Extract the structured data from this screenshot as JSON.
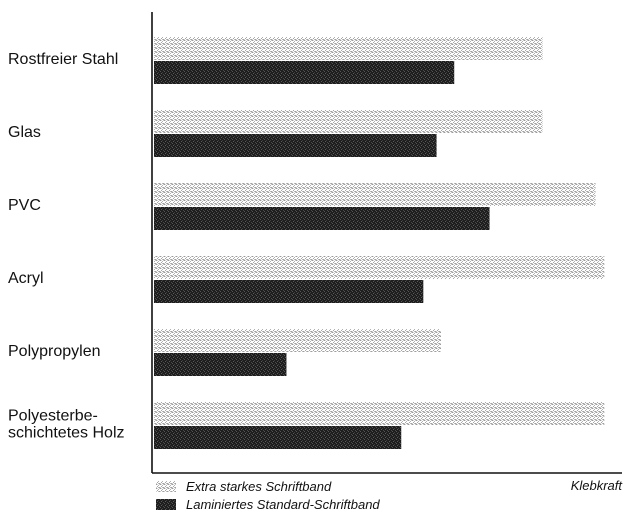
{
  "chart_data": {
    "type": "bar",
    "orientation": "horizontal",
    "categories": [
      [
        "Rostfreier Stahl"
      ],
      [
        "Glas"
      ],
      [
        "PVC"
      ],
      [
        "Acryl"
      ],
      [
        "Polypropylen"
      ],
      [
        "Polyesterbe-",
        "schichtetes Holz"
      ]
    ],
    "series": [
      {
        "name": "Extra starkes Schriftband",
        "values": [
          88,
          88,
          100,
          102,
          65,
          102
        ],
        "color": "#c9c9c9",
        "pattern": "light-stipple"
      },
      {
        "name": "Laminiertes Standard-Schriftband",
        "values": [
          68,
          64,
          76,
          61,
          30,
          56
        ],
        "color": "#2a2a2a",
        "pattern": "dark-stipple"
      }
    ],
    "xlabel": "Klebkraft",
    "ylabel": "",
    "xlim": [
      0,
      106
    ],
    "grid": false,
    "legend_position": "bottom-left"
  }
}
